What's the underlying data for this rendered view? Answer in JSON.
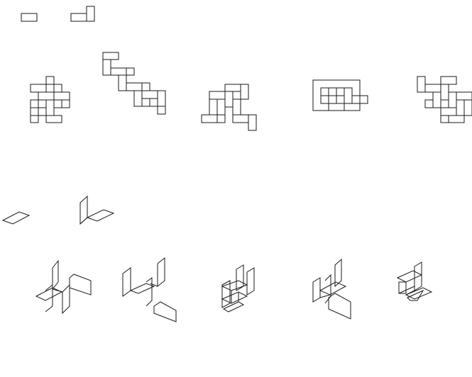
{
  "figure": {
    "stroke_color": "#1a1a1a",
    "background_color": "#ffffff",
    "has_text": false
  },
  "rows": [
    {
      "view": "planar",
      "shapes": [
        "legend-piece-flat",
        "legend-piece-flat-with-tab",
        "option-1",
        "option-2",
        "option-3",
        "option-4",
        "option-5"
      ]
    },
    {
      "view": "isometric",
      "shapes": [
        "legend-piece-iso",
        "legend-piece-iso-with-fold",
        "option-1",
        "option-2",
        "option-3",
        "option-4",
        "option-5"
      ]
    }
  ]
}
